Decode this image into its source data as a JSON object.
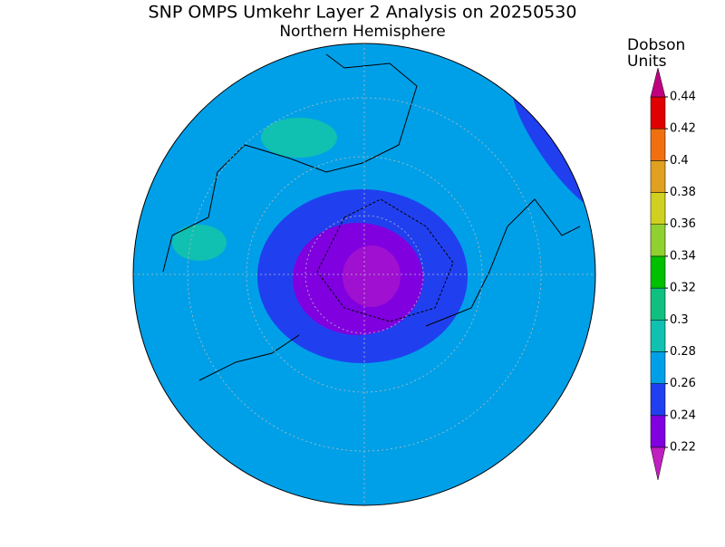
{
  "title": "SNP OMPS Umkehr Layer 2 Analysis on 20250530",
  "subtitle": "Northern Hemisphere",
  "colorbar": {
    "label_lines": [
      "Dobson",
      "Units"
    ],
    "ticks": [
      0.22,
      0.24,
      0.26,
      0.28,
      0.3,
      0.32,
      0.34,
      0.36,
      0.38,
      0.4,
      0.42,
      0.44
    ],
    "under_color": "#c020c0",
    "colors": [
      "#8000e0",
      "#2040f0",
      "#00a0e8",
      "#10c0b0",
      "#10c080",
      "#00c000",
      "#90d030",
      "#d0d020",
      "#e0a020",
      "#f07010",
      "#e00000"
    ],
    "over_color": "#c00080"
  }
}
